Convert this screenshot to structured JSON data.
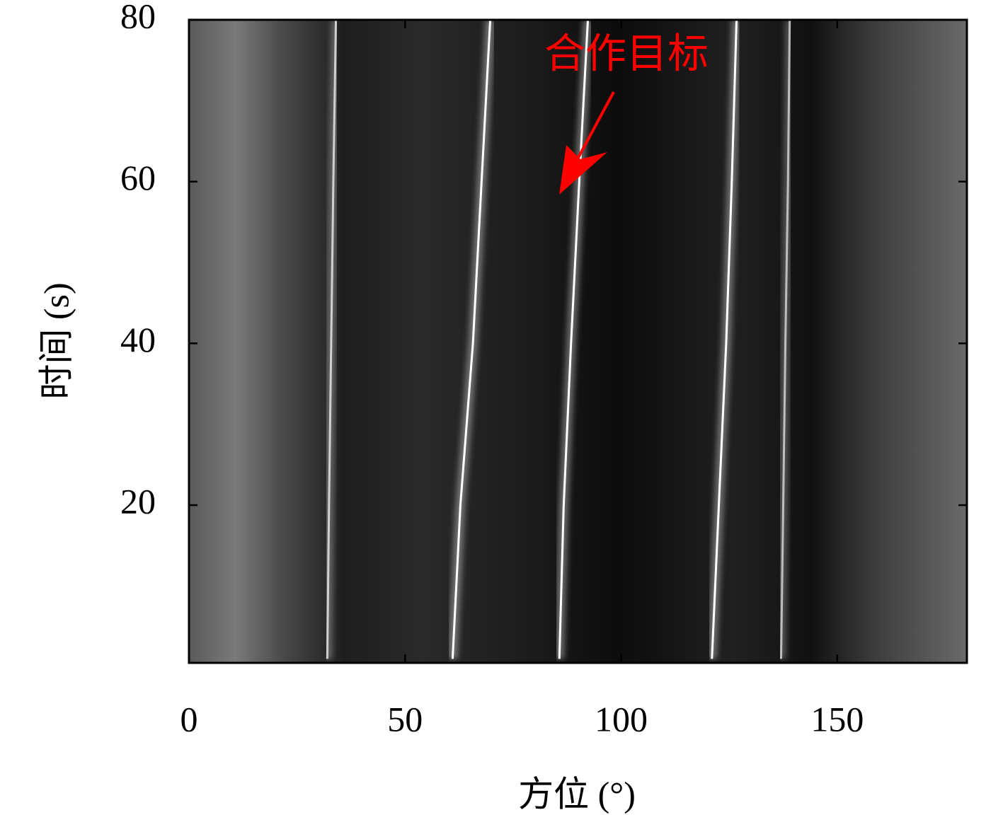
{
  "chart_data": {
    "type": "line",
    "xlabel": "方位 (°)",
    "ylabel": "时间 (s)",
    "annotation": "合作目标",
    "xlim": [
      0,
      180
    ],
    "xticks": [
      0,
      50,
      100,
      150
    ],
    "ylim": [
      0.5,
      80
    ],
    "yticks": [
      20,
      40,
      60,
      80
    ],
    "series": [
      {
        "color": "#ffffff",
        "x": [
          61,
          62.8,
          65.7,
          67.7,
          69.7
        ],
        "values": [
          1,
          20,
          40,
          60,
          80
        ]
      },
      {
        "color": "#ffffff",
        "x": [
          85.7,
          86.7,
          88.4,
          90.3,
          92.3
        ],
        "values": [
          1,
          20,
          40,
          60,
          80
        ]
      },
      {
        "color": "#ffffff",
        "x": [
          121,
          122.6,
          124.3,
          125.6,
          126.7
        ],
        "values": [
          1,
          20,
          40,
          60,
          80
        ]
      },
      {
        "color": "#cfcfcf",
        "x": [
          32,
          32.4,
          32.9,
          33.4,
          34
        ],
        "values": [
          1,
          20,
          40,
          60,
          80
        ]
      },
      {
        "color": "#bdbdbd",
        "x": [
          137,
          137.5,
          138,
          138.6,
          139
        ],
        "values": [
          1,
          20,
          40,
          60,
          80
        ]
      }
    ]
  }
}
